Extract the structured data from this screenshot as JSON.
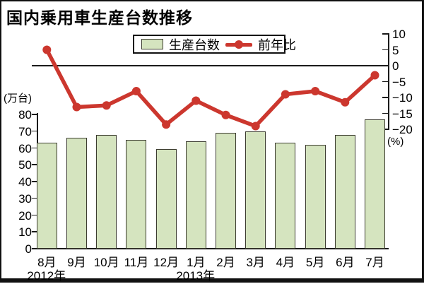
{
  "chart_data": {
    "type": "bar+line",
    "title": "国内乗用車生産台数推移",
    "categories": [
      "8月",
      "9月",
      "10月",
      "11月",
      "12月",
      "1月",
      "2月",
      "3月",
      "4月",
      "5月",
      "6月",
      "7月"
    ],
    "series": [
      {
        "name": "生産台数",
        "type": "bar",
        "axis": "left",
        "unit": "万台",
        "color": "#d5e4bf",
        "values": [
          63,
          66,
          68,
          65,
          59.5,
          64,
          69,
          70,
          63,
          62,
          68,
          77
        ]
      },
      {
        "name": "前年比",
        "type": "line",
        "axis": "right",
        "unit": "%",
        "color": "#cc372e",
        "values": [
          5,
          -13,
          -12.5,
          -8,
          -18.5,
          -11,
          -15.5,
          -19,
          -9,
          -8,
          -11.5,
          -3
        ]
      }
    ],
    "left_axis": {
      "label": "(万台)",
      "ticks": [
        80,
        70,
        60,
        50,
        40,
        30,
        20,
        10,
        0
      ],
      "range": [
        0,
        80
      ],
      "grid": false
    },
    "right_axis": {
      "label": "(%)",
      "ticks": [
        10,
        5,
        0,
        -5,
        -10,
        -15,
        -20
      ],
      "range": [
        -20,
        10
      ],
      "zero_line": true
    },
    "x_axis": {
      "year_markers": [
        {
          "label": "2012年",
          "month_index": 0
        },
        {
          "label": "2013年",
          "month_index": 5
        }
      ]
    },
    "legend": {
      "position": "top",
      "items": [
        "生産台数",
        "前年比"
      ]
    },
    "colors": {
      "bar_fill": "#d5e4bf",
      "bar_border": "#3c3c30",
      "line_red": "#cc372e",
      "axis_black": "#1a1a1a"
    }
  }
}
